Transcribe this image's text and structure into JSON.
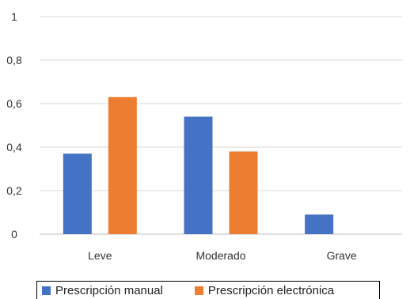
{
  "chart_data": {
    "type": "bar",
    "categories": [
      "Leve",
      "Moderado",
      "Grave"
    ],
    "series": [
      {
        "name": "Prescripción manual",
        "color": "#4472c4",
        "values": [
          0.37,
          0.54,
          0.09
        ]
      },
      {
        "name": "Prescripción electrónica",
        "color": "#ed7d31",
        "values": [
          0.63,
          0.38,
          0
        ]
      }
    ],
    "yticks": [
      "0",
      "0,2",
      "0,4",
      "0,6",
      "0,8",
      "1"
    ],
    "ylim": [
      0,
      1
    ],
    "grid": true,
    "legend_position": "bottom"
  }
}
